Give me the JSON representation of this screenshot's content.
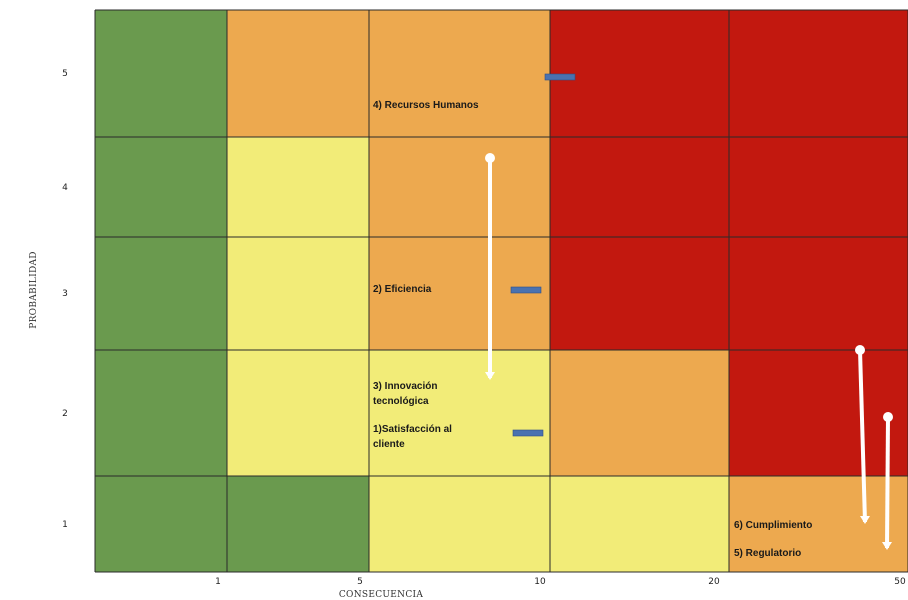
{
  "chart_data": {
    "type": "heatmap",
    "title": "",
    "xlabel": "CONSECUENCIA",
    "ylabel": "PROBABILIDAD",
    "x_tick_labels": [
      "1",
      "5",
      "10",
      "20",
      "50"
    ],
    "y_tick_labels": [
      "5",
      "4",
      "3",
      "2",
      "1"
    ],
    "colors": {
      "green": "#6a9a4e",
      "yellow": "#f2ec78",
      "orange": "#eda94f",
      "red": "#c2180f",
      "grid": "#2a2a2a",
      "arrow": "#ffffff",
      "marker": "#4a72b0"
    },
    "cells": [
      [
        "green",
        "orange",
        "orange",
        "red",
        "red"
      ],
      [
        "green",
        "yellow",
        "orange",
        "red",
        "red"
      ],
      [
        "green",
        "yellow",
        "orange",
        "red",
        "red"
      ],
      [
        "green",
        "yellow",
        "yellow",
        "orange",
        "red"
      ],
      [
        "green",
        "green",
        "yellow",
        "yellow",
        "orange"
      ]
    ],
    "risks": [
      {
        "label": "4) Recursos Humanos",
        "consecuencia": 10,
        "probabilidad": 5
      },
      {
        "label": "2) Eficiencia",
        "consecuencia": 10,
        "probabilidad": 3
      },
      {
        "label": "3) Innovación tecnológica",
        "consecuencia": 10,
        "probabilidad": 2
      },
      {
        "label": "1)Satisfacción al cliente",
        "consecuencia": 10,
        "probabilidad": 2
      },
      {
        "label": "6) Cumplimiento",
        "consecuencia": 50,
        "probabilidad": 1
      },
      {
        "label": "5) Regulatorio",
        "consecuencia": 50,
        "probabilidad": 1
      }
    ]
  }
}
